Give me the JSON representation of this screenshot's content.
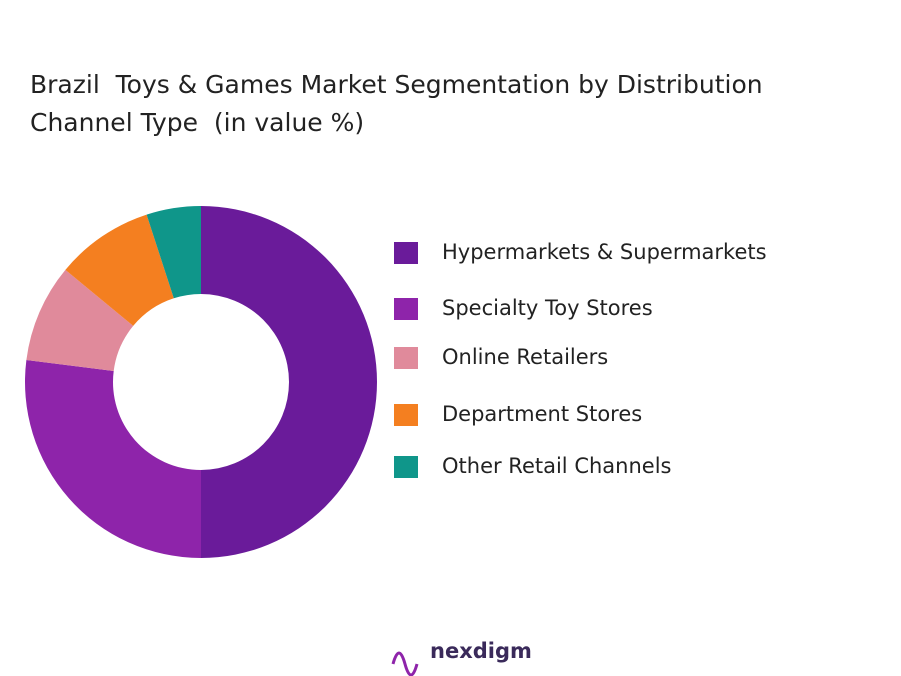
{
  "chart_data": {
    "type": "donut",
    "title": "Brazil  Toys & Games Market Segmentation by Distribution Channel Type  (in value %)",
    "categories": [
      "Hypermarkets & Supermarkets",
      "Specialty Toy Stores",
      "Online Retailers",
      "Department Stores",
      "Other Retail Channels"
    ],
    "values": [
      50,
      27,
      9,
      9,
      5
    ],
    "colors": [
      "#6a1b9a",
      "#8e24aa",
      "#e08a9b",
      "#f47f20",
      "#0f968a"
    ],
    "legend": "right"
  },
  "logo": "nexdigm"
}
